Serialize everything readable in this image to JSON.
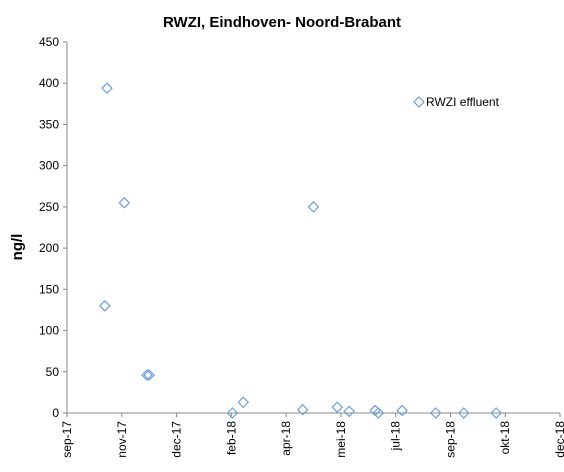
{
  "chart_data": {
    "type": "scatter",
    "title": "RWZI, Eindhoven- Noord-Brabant",
    "xlabel": "",
    "ylabel": "ng/l",
    "x_ticks": [
      "sep-17",
      "nov-17",
      "dec-17",
      "feb-18",
      "apr-18",
      "mei-18",
      "jul-18",
      "sep-18",
      "okt-18",
      "dec-18"
    ],
    "y_ticks": [
      "0",
      "50",
      "100",
      "150",
      "200",
      "250",
      "300",
      "350",
      "400",
      "450"
    ],
    "ylim": [
      0,
      450
    ],
    "grid": false,
    "legend_position": "top-right",
    "series": [
      {
        "name": "RWZI effluent",
        "color": "#6f9fd8",
        "marker": "diamond",
        "points": [
          {
            "x": "2017-10-06",
            "y": 130
          },
          {
            "x": "2017-10-08",
            "y": 394
          },
          {
            "x": "2017-10-24",
            "y": 255
          },
          {
            "x": "2017-11-14",
            "y": 46
          },
          {
            "x": "2017-11-16",
            "y": 46
          },
          {
            "x": "2018-02-01",
            "y": 0
          },
          {
            "x": "2018-02-11",
            "y": 13
          },
          {
            "x": "2018-04-07",
            "y": 4
          },
          {
            "x": "2018-04-17",
            "y": 250
          },
          {
            "x": "2018-05-09",
            "y": 7
          },
          {
            "x": "2018-05-20",
            "y": 2
          },
          {
            "x": "2018-06-13",
            "y": 3
          },
          {
            "x": "2018-06-16",
            "y": 0
          },
          {
            "x": "2018-07-08",
            "y": 3
          },
          {
            "x": "2018-08-08",
            "y": 0
          },
          {
            "x": "2018-09-03",
            "y": 0
          },
          {
            "x": "2018-10-03",
            "y": 0
          }
        ]
      }
    ]
  }
}
